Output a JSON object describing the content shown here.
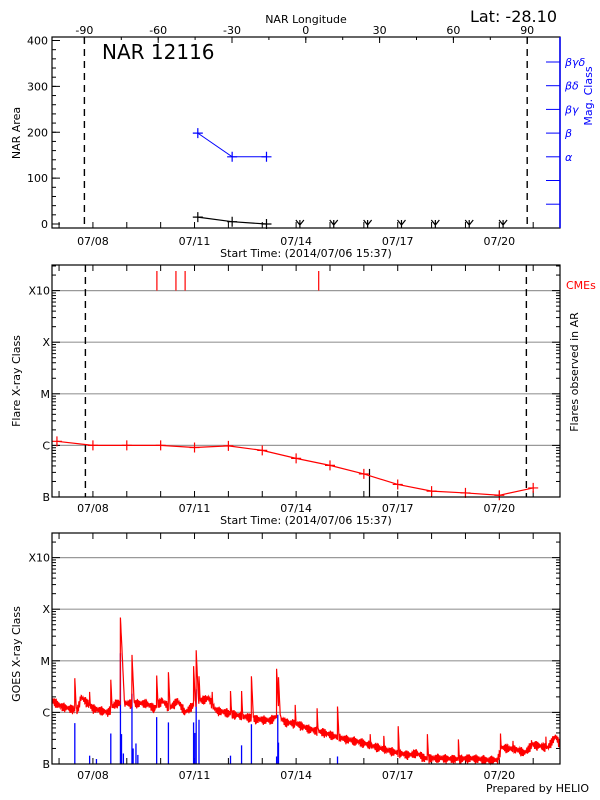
{
  "header": {
    "lat_label": "Lat: -28.10"
  },
  "footer": {
    "credit": "Prepared by HELIO"
  },
  "chart_data": [
    {
      "type": "line",
      "title": "NAR 12116",
      "xlabel": "Start Time: (2014/07/06 15:37)",
      "ylabel": "NAR Area",
      "y2label": "Mag. Class",
      "top_xlabel": "NAR Longitude",
      "xlim": [
        "2014-07-06T19:00",
        "2014-07-21T19:00"
      ],
      "ylim": [
        0,
        400
      ],
      "yticks": [
        "0",
        "100",
        "200",
        "300",
        "400"
      ],
      "xticks": [
        "07/08",
        "07/11",
        "07/14",
        "07/17",
        "07/20"
      ],
      "top_xticks": [
        "-90",
        "-60",
        "-30",
        "0",
        "30",
        "60",
        "90"
      ],
      "limb_longitudes": [
        -90,
        90
      ],
      "mag_class_ticks": [
        "βγδ",
        "βδ",
        "βγ",
        "β",
        "α",
        "",
        ""
      ],
      "area_color": "#000000",
      "mag_color": "#0000ff",
      "area_points": [
        [
          "2014-07-11T02:20",
          15
        ],
        [
          "2014-07-12T02:40",
          5
        ],
        [
          "2014-07-13T03:00",
          0
        ]
      ],
      "mag_points": [
        [
          "2014-07-11T02:20",
          "β"
        ],
        [
          "2014-07-12T02:40",
          "α"
        ],
        [
          "2014-07-13T03:00",
          "α"
        ]
      ],
      "no_data_markers": [
        "2014-07-14T02:40",
        "2014-07-15T02:40",
        "2014-07-16T02:40",
        "2014-07-17T02:40",
        "2014-07-18T02:40",
        "2014-07-19T02:40",
        "2014-07-20T02:40"
      ],
      "grid": false
    },
    {
      "type": "line",
      "xlabel": "Start Time: (2014/07/06 15:37)",
      "ylabel": "Flare X-ray Class",
      "y2label": "Flares observed in AR",
      "cme_label": "CMEs",
      "xlim": [
        "2014-07-06T19:00",
        "2014-07-21T19:00"
      ],
      "ylim": [
        1e-07,
        0.0025
      ],
      "yscale": "log",
      "ytick_values": [
        1e-07,
        1e-06,
        1e-05,
        0.0001,
        0.001
      ],
      "yticks": [
        "B",
        "C",
        "M",
        "X",
        "X10"
      ],
      "xticks": [
        "07/08",
        "07/11",
        "07/14",
        "07/17",
        "07/20"
      ],
      "grid": true,
      "color": "#ff0000",
      "limb_times": [
        "2014-07-07T18:40",
        "2014-07-20T19:10"
      ],
      "flux_points": [
        [
          "2014-07-06T22:30",
          1.2e-06
        ],
        [
          "2014-07-08T00:00",
          1e-06
        ],
        [
          "2014-07-09T00:00",
          1e-06
        ],
        [
          "2014-07-10T00:00",
          1e-06
        ],
        [
          "2014-07-11T00:00",
          9.1e-07
        ],
        [
          "2014-07-12T00:00",
          9.8e-07
        ],
        [
          "2014-07-13T00:00",
          8e-07
        ],
        [
          "2014-07-14T00:00",
          5.6e-07
        ],
        [
          "2014-07-15T00:00",
          4.1e-07
        ],
        [
          "2014-07-16T00:00",
          2.8e-07
        ],
        [
          "2014-07-17T00:00",
          1.75e-07
        ],
        [
          "2014-07-18T00:00",
          1.3e-07
        ],
        [
          "2014-07-19T00:00",
          1.2e-07
        ],
        [
          "2014-07-20T00:00",
          1.08e-07
        ],
        [
          "2014-07-21T00:00",
          1.5e-07
        ]
      ],
      "cme_times": [
        "2014-07-09T21:20",
        "2014-07-10T10:50",
        "2014-07-10T17:20",
        "2014-07-14T16:00"
      ],
      "observed_flares": [
        [
          "2014-07-16T04:00",
          3.5e-07
        ]
      ]
    },
    {
      "type": "line",
      "ylabel": "GOES X-ray Class",
      "xlim": [
        "2014-07-06T19:00",
        "2014-07-21T19:00"
      ],
      "ylim": [
        1e-07,
        0.0025
      ],
      "yscale": "log",
      "ytick_values": [
        1e-07,
        1e-06,
        1e-05,
        0.0001,
        0.001
      ],
      "yticks": [
        "B",
        "C",
        "M",
        "X",
        "X10"
      ],
      "xticks": [
        "07/08",
        "07/11",
        "07/14",
        "07/17",
        "07/20"
      ],
      "grid": true,
      "long_channel_color": "#ff0000",
      "short_channel_color": "#0000ff",
      "long_channel_background": [
        [
          "2014-07-06T19:00",
          1.7e-06
        ],
        [
          "2014-07-07T02:00",
          1.3e-06
        ],
        [
          "2014-07-07T13:00",
          1.1e-06
        ],
        [
          "2014-07-07T15:40",
          2e-06
        ],
        [
          "2014-07-08T00:00",
          1.2e-06
        ],
        [
          "2014-07-08T10:40",
          1e-06
        ],
        [
          "2014-07-08T16:10",
          1.5e-06
        ],
        [
          "2014-07-09T03:00",
          1.5e-06
        ],
        [
          "2014-07-09T14:00",
          1.5e-06
        ],
        [
          "2014-07-09T19:30",
          1.2e-06
        ],
        [
          "2014-07-10T01:00",
          1.7e-06
        ],
        [
          "2014-07-10T06:30",
          1.2e-06
        ],
        [
          "2014-07-10T12:00",
          1.7e-06
        ],
        [
          "2014-07-10T17:20",
          1e-06
        ],
        [
          "2014-07-11T01:30",
          1.6e-06
        ],
        [
          "2014-07-11T09:50",
          1.9e-06
        ],
        [
          "2014-07-11T15:10",
          1.1e-06
        ],
        [
          "2014-07-12T02:10",
          9.4e-07
        ],
        [
          "2014-07-12T13:10",
          8.1e-07
        ],
        [
          "2014-07-12T18:30",
          7.5e-07
        ],
        [
          "2014-07-13T05:30",
          7e-07
        ],
        [
          "2014-07-13T11:00",
          8.7e-07
        ],
        [
          "2014-07-13T16:20",
          6.5e-07
        ],
        [
          "2014-07-14T00:40",
          6e-07
        ],
        [
          "2014-07-14T08:50",
          4.8e-07
        ],
        [
          "2014-07-14T19:40",
          4.1e-07
        ],
        [
          "2014-07-15T04:00",
          3.4e-07
        ],
        [
          "2014-07-15T12:10",
          3e-07
        ],
        [
          "2014-07-15T23:00",
          2.6e-07
        ],
        [
          "2014-07-16T07:10",
          2.2e-07
        ],
        [
          "2014-07-16T15:30",
          1.9e-07
        ],
        [
          "2014-07-16T23:40",
          1.65e-07
        ],
        [
          "2014-07-17T08:00",
          1.5e-07
        ],
        [
          "2014-07-17T13:20",
          1.65e-07
        ],
        [
          "2014-07-17T18:50",
          1.3e-07
        ],
        [
          "2014-07-18T05:50",
          1.3e-07
        ],
        [
          "2014-07-18T16:40",
          1.25e-07
        ],
        [
          "2014-07-19T03:40",
          1.3e-07
        ],
        [
          "2014-07-19T14:40",
          1.2e-07
        ],
        [
          "2014-07-19T22:50",
          1.2e-07
        ],
        [
          "2014-07-20T01:30",
          2.1e-07
        ],
        [
          "2014-07-20T12:30",
          1.9e-07
        ],
        [
          "2014-07-20T18:00",
          1.65e-07
        ],
        [
          "2014-07-20T23:20",
          2.4e-07
        ],
        [
          "2014-07-21T10:20",
          2.1e-07
        ],
        [
          "2014-07-21T15:50",
          3.5e-07
        ],
        [
          "2014-07-21T19:00",
          2.4e-07
        ]
      ],
      "long_channel_peaks": [
        [
          "2014-07-07T11:10",
          4.6e-06
        ],
        [
          "2014-07-07T21:40",
          2.5e-06
        ],
        [
          "2014-07-08T12:40",
          4.3e-06
        ],
        [
          "2014-07-08T19:30",
          6.9e-05
        ],
        [
          "2014-07-08T20:15",
          7.3e-06
        ],
        [
          "2014-07-09T03:40",
          1.3e-05
        ],
        [
          "2014-07-09T04:30",
          4.3e-06
        ],
        [
          "2014-07-09T21:10",
          5.2e-06
        ],
        [
          "2014-07-10T05:30",
          6e-06
        ],
        [
          "2014-07-10T23:20",
          7.9e-06
        ],
        [
          "2014-07-11T01:10",
          1.6e-05
        ],
        [
          "2014-07-11T03:10",
          5e-06
        ],
        [
          "2014-07-11T12:30",
          2.5e-06
        ],
        [
          "2014-07-12T01:30",
          2.6e-06
        ],
        [
          "2014-07-12T09:20",
          2.6e-06
        ],
        [
          "2014-07-12T16:20",
          5e-06
        ],
        [
          "2014-07-13T10:10",
          7e-06
        ],
        [
          "2014-07-13T11:30",
          4.8e-06
        ],
        [
          "2014-07-13T23:20",
          1.4e-06
        ],
        [
          "2014-07-14T14:50",
          1.2e-06
        ],
        [
          "2014-07-15T05:20",
          1.3e-06
        ],
        [
          "2014-07-16T04:30",
          3.8e-07
        ],
        [
          "2014-07-16T14:10",
          3.5e-07
        ],
        [
          "2014-07-17T00:20",
          5.4e-07
        ],
        [
          "2014-07-17T21:00",
          3.8e-07
        ],
        [
          "2014-07-18T19:00",
          3e-07
        ],
        [
          "2014-07-20T00:50",
          3.9e-07
        ],
        [
          "2014-07-20T09:40",
          2.8e-07
        ],
        [
          "2014-07-20T22:50",
          2.9e-07
        ],
        [
          "2014-07-21T09:00",
          3.4e-07
        ]
      ],
      "short_channel_peaks": [
        [
          "2014-07-07T11:10",
          6.2e-07
        ],
        [
          "2014-07-07T21:40",
          1.45e-07
        ],
        [
          "2014-07-08T02:30",
          1.25e-07
        ],
        [
          "2014-07-08T12:40",
          3.9e-07
        ],
        [
          "2014-07-08T19:30",
          1.4e-05
        ],
        [
          "2014-07-08T20:15",
          3.8e-07
        ],
        [
          "2014-07-08T21:35",
          1.6e-07
        ],
        [
          "2014-07-09T03:40",
          2.3e-06
        ],
        [
          "2014-07-09T04:30",
          2e-07
        ],
        [
          "2014-07-09T06:30",
          2.5e-07
        ],
        [
          "2014-07-09T07:50",
          1.5e-07
        ],
        [
          "2014-07-09T21:10",
          8.1e-07
        ],
        [
          "2014-07-10T05:30",
          6.4e-07
        ],
        [
          "2014-07-10T23:20",
          6.4e-07
        ],
        [
          "2014-07-11T00:10",
          4e-07
        ],
        [
          "2014-07-11T01:10",
          2.8e-06
        ],
        [
          "2014-07-11T03:10",
          7.2e-07
        ],
        [
          "2014-07-12T01:30",
          1.45e-07
        ],
        [
          "2014-07-12T09:20",
          2.3e-07
        ],
        [
          "2014-07-12T16:20",
          5.9e-07
        ],
        [
          "2014-07-13T10:10",
          1.4e-07
        ],
        [
          "2014-07-13T11:00",
          9e-07
        ],
        [
          "2014-07-13T11:30",
          2.6e-07
        ],
        [
          "2014-07-15T05:20",
          1.4e-07
        ]
      ]
    }
  ]
}
